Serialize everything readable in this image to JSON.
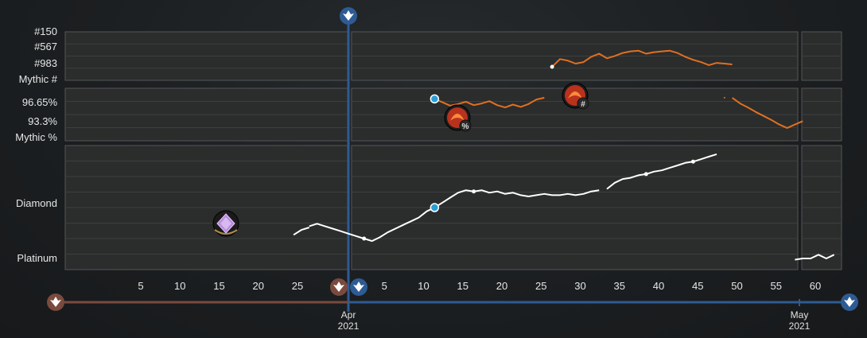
{
  "chart_data": {
    "type": "line",
    "panels": [
      {
        "name": "mythic-rank",
        "y_ticks": [
          "#150",
          "#567",
          "#983",
          "Mythic #"
        ],
        "series": [
          {
            "color": "#e07020",
            "segments": [
              [
                [
                  26,
                  983
                ],
                [
                  27,
                  780
                ],
                [
                  28,
                  820
                ],
                [
                  29,
                  900
                ],
                [
                  30,
                  860
                ],
                [
                  31,
                  720
                ],
                [
                  32,
                  640
                ],
                [
                  33,
                  760
                ],
                [
                  34,
                  700
                ],
                [
                  35,
                  620
                ],
                [
                  36,
                  580
                ],
                [
                  37,
                  560
                ],
                [
                  38,
                  640
                ],
                [
                  39,
                  600
                ],
                [
                  40,
                  580
                ],
                [
                  41,
                  560
                ],
                [
                  42,
                  620
                ],
                [
                  43,
                  720
                ],
                [
                  44,
                  800
                ],
                [
                  45,
                  860
                ],
                [
                  46,
                  940
                ],
                [
                  47,
                  880
                ],
                [
                  48,
                  900
                ],
                [
                  49,
                  920
                ]
              ]
            ]
          }
        ]
      },
      {
        "name": "mythic-percent",
        "y_ticks": [
          "96.65%",
          "93.3%",
          "Mythic %"
        ],
        "series": [
          {
            "color": "#e07020",
            "segments": [
              [
                [
                  11,
                  97.3
                ],
                [
                  12,
                  96.7
                ],
                [
                  13,
                  96.1
                ],
                [
                  14,
                  96.4
                ],
                [
                  15,
                  96.8
                ],
                [
                  16,
                  96.2
                ],
                [
                  17,
                  96.5
                ],
                [
                  18,
                  96.9
                ],
                [
                  19,
                  96.2
                ],
                [
                  20,
                  95.8
                ],
                [
                  21,
                  96.3
                ],
                [
                  22,
                  95.9
                ],
                [
                  23,
                  96.4
                ],
                [
                  24,
                  97.2
                ],
                [
                  25,
                  97.5
                ]
              ],
              [
                [
                  48,
                  97.5
                ]
              ],
              [
                [
                  49,
                  97.5
                ],
                [
                  50,
                  96.5
                ],
                [
                  51,
                  95.8
                ],
                [
                  52,
                  95.0
                ],
                [
                  53,
                  94.3
                ],
                [
                  54,
                  93.6
                ],
                [
                  55,
                  92.8
                ],
                [
                  56,
                  92.2
                ],
                [
                  57,
                  92.8
                ],
                [
                  58,
                  93.4
                ]
              ]
            ]
          }
        ]
      },
      {
        "name": "rank-tier",
        "y_ticks": [
          "Diamond",
          "Platinum"
        ],
        "series": [
          {
            "color": "#ffffff",
            "segments": [
              [
                [
                  -7,
                  0.28
                ],
                [
                  -6,
                  0.32
                ],
                [
                  -5,
                  0.34
                ]
              ],
              [
                [
                  -5,
                  0.35
                ],
                [
                  -4,
                  0.37
                ],
                [
                  -3,
                  0.35
                ],
                [
                  -2,
                  0.33
                ],
                [
                  -1,
                  0.31
                ],
                [
                  0,
                  0.29
                ],
                [
                  1,
                  0.27
                ],
                [
                  2,
                  0.25
                ],
                [
                  3,
                  0.23
                ],
                [
                  4,
                  0.26
                ],
                [
                  5,
                  0.3
                ],
                [
                  6,
                  0.33
                ],
                [
                  7,
                  0.36
                ],
                [
                  8,
                  0.39
                ],
                [
                  9,
                  0.42
                ],
                [
                  10,
                  0.47
                ],
                [
                  11,
                  0.5
                ],
                [
                  12,
                  0.54
                ],
                [
                  13,
                  0.58
                ],
                [
                  14,
                  0.62
                ],
                [
                  15,
                  0.64
                ],
                [
                  16,
                  0.63
                ],
                [
                  17,
                  0.64
                ],
                [
                  18,
                  0.62
                ],
                [
                  19,
                  0.63
                ],
                [
                  20,
                  0.61
                ],
                [
                  21,
                  0.62
                ],
                [
                  22,
                  0.6
                ],
                [
                  23,
                  0.59
                ],
                [
                  24,
                  0.6
                ],
                [
                  25,
                  0.61
                ],
                [
                  26,
                  0.6
                ],
                [
                  27,
                  0.6
                ],
                [
                  28,
                  0.61
                ],
                [
                  29,
                  0.6
                ],
                [
                  30,
                  0.61
                ],
                [
                  31,
                  0.63
                ],
                [
                  32,
                  0.64
                ]
              ],
              [
                [
                  33,
                  0.65
                ],
                [
                  34,
                  0.7
                ],
                [
                  35,
                  0.73
                ],
                [
                  36,
                  0.74
                ],
                [
                  37,
                  0.76
                ],
                [
                  38,
                  0.77
                ],
                [
                  39,
                  0.79
                ],
                [
                  40,
                  0.8
                ],
                [
                  41,
                  0.82
                ],
                [
                  42,
                  0.84
                ],
                [
                  43,
                  0.86
                ],
                [
                  44,
                  0.87
                ],
                [
                  45,
                  0.89
                ],
                [
                  46,
                  0.91
                ],
                [
                  47,
                  0.93
                ]
              ],
              [
                [
                  57,
                  0.08
                ],
                [
                  58,
                  0.09
                ],
                [
                  59,
                  0.09
                ],
                [
                  60,
                  0.12
                ],
                [
                  61,
                  0.09
                ],
                [
                  62,
                  0.12
                ]
              ]
            ]
          }
        ]
      }
    ],
    "x_ticks": [
      "5",
      "10",
      "15",
      "20",
      "25",
      "30",
      "5",
      "10",
      "15",
      "20",
      "25",
      "30",
      "35",
      "40",
      "45",
      "50",
      "55",
      "60"
    ],
    "month_labels": [
      {
        "month": "Apr",
        "year": "2021"
      },
      {
        "month": "May",
        "year": "2021"
      }
    ],
    "grid": true,
    "legend": "none"
  },
  "colors": {
    "panel_bg": "#2b2c2c",
    "panel_border": "#555555",
    "grid": "#3e3f3f",
    "current_season": "#2e5b93",
    "previous_season": "#7a4a3e",
    "marker_blue": "#2a9fd6",
    "mythic_line": "#e07020",
    "rank_line": "#ffffff"
  },
  "icons": {
    "season_start": "phoenix-emblem-icon",
    "previous_season": "phoenix-emblem-icon",
    "mythic_percent": "mythic-percent-icon",
    "mythic_rank": "mythic-rank-icon",
    "diamond": "diamond-rank-icon"
  }
}
